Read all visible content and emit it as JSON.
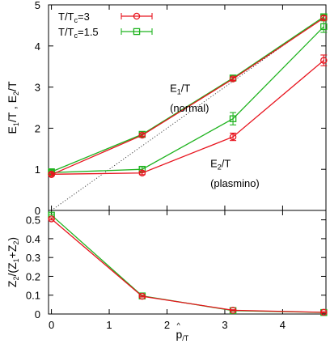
{
  "chart_data": [
    {
      "type": "line",
      "panel": "top",
      "ylabel_parts": [
        "E",
        "1",
        "/T , E",
        "2",
        "/T"
      ],
      "x": [
        0,
        1.5708,
        3.1416,
        4.7124
      ],
      "xlim": [
        -0.05,
        4.75
      ],
      "ylim": [
        0,
        5
      ],
      "yticks": [
        "0",
        "1",
        "2",
        "3",
        "4",
        "5"
      ],
      "grid": false,
      "legend_position": "top-left",
      "series": [
        {
          "name": "T/Tc=3",
          "name_parts": [
            "T/T",
            "c",
            "=3"
          ],
          "color": "#e8141e",
          "marker": "circle",
          "branch": "normal",
          "values": [
            0.87,
            1.83,
            3.2,
            4.68
          ],
          "errors": [
            0.03,
            0.03,
            0.04,
            0.05
          ]
        },
        {
          "name": "T/Tc=3",
          "name_parts": [
            "T/T",
            "c",
            "=3"
          ],
          "color": "#e8141e",
          "marker": "circle",
          "branch": "plasmino",
          "values": [
            0.88,
            0.91,
            1.79,
            3.65
          ],
          "errors": [
            0.03,
            0.04,
            0.09,
            0.13
          ]
        },
        {
          "name": "T/Tc=1.5",
          "name_parts": [
            "T/T",
            "c",
            "=1.5"
          ],
          "color": "#1fb31f",
          "marker": "square",
          "branch": "normal",
          "values": [
            0.94,
            1.85,
            3.22,
            4.71
          ],
          "errors": [
            0.04,
            0.04,
            0.05,
            0.05
          ]
        },
        {
          "name": "T/Tc=1.5",
          "name_parts": [
            "T/T",
            "c",
            "=1.5"
          ],
          "color": "#1fb31f",
          "marker": "square",
          "branch": "plasmino",
          "values": [
            0.92,
            1.0,
            2.23,
            4.47
          ],
          "errors": [
            0.04,
            0.06,
            0.15,
            0.14
          ]
        }
      ],
      "reference_line": {
        "style": "dotted",
        "x": [
          0,
          4.75
        ],
        "y": [
          0,
          4.75
        ]
      },
      "annotations": [
        {
          "parts": [
            "E",
            "1",
            "/T"
          ],
          "x": 2.05,
          "y": 2.88
        },
        {
          "parts": [
            "(normal)"
          ],
          "x": 2.05,
          "y": 2.4
        },
        {
          "parts": [
            "E",
            "2",
            "/T"
          ],
          "x": 2.75,
          "y": 1.05
        },
        {
          "parts": [
            "(plasmino)"
          ],
          "x": 2.75,
          "y": 0.57
        }
      ]
    },
    {
      "type": "line",
      "panel": "bottom",
      "ylabel_parts": [
        "Z",
        "2",
        "/(Z",
        "1",
        "+Z",
        "2",
        ")"
      ],
      "xlabel_parts": [
        "p",
        "/T"
      ],
      "xlabel_hat": "^",
      "x": [
        0,
        1.5708,
        3.1416,
        4.7124
      ],
      "xlim": [
        -0.05,
        4.75
      ],
      "ylim": [
        0,
        0.55
      ],
      "xticks": [
        "0",
        "1",
        "2",
        "3",
        "4"
      ],
      "yticks": [
        "0",
        "0.1",
        "0.2",
        "0.3",
        "0.4",
        "0.5"
      ],
      "grid": false,
      "series": [
        {
          "name": "T/Tc=3",
          "color": "#e8141e",
          "marker": "circle",
          "values": [
            0.505,
            0.094,
            0.02,
            0.009
          ],
          "errors": [
            0.005,
            0.004,
            0.003,
            0.003
          ]
        },
        {
          "name": "T/Tc=1.5",
          "color": "#1fb31f",
          "marker": "square",
          "values": [
            0.525,
            0.096,
            0.018,
            0.008
          ],
          "errors": [
            0.005,
            0.004,
            0.003,
            0.003
          ]
        }
      ]
    }
  ]
}
